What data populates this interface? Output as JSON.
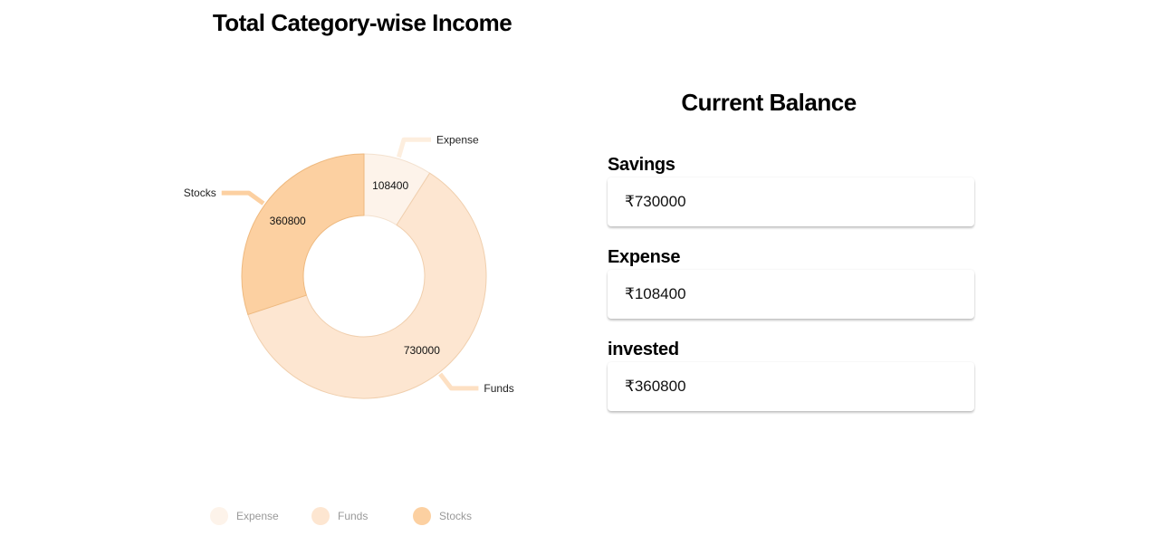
{
  "chart_data": {
    "type": "pie",
    "title": "Total Category-wise Income",
    "donut": true,
    "categories": [
      "Expense",
      "Funds",
      "Stocks"
    ],
    "values": [
      108400,
      730000,
      360800
    ],
    "colors": [
      "#fdf3ea",
      "#fde6d1",
      "#fcd0a1"
    ],
    "legend_position": "bottom"
  },
  "balance": {
    "title": "Current Balance",
    "items": [
      {
        "label": "Savings",
        "value": "₹730000"
      },
      {
        "label": "Expense",
        "value": "₹108400"
      },
      {
        "label": "invested",
        "value": "₹360800"
      }
    ]
  }
}
